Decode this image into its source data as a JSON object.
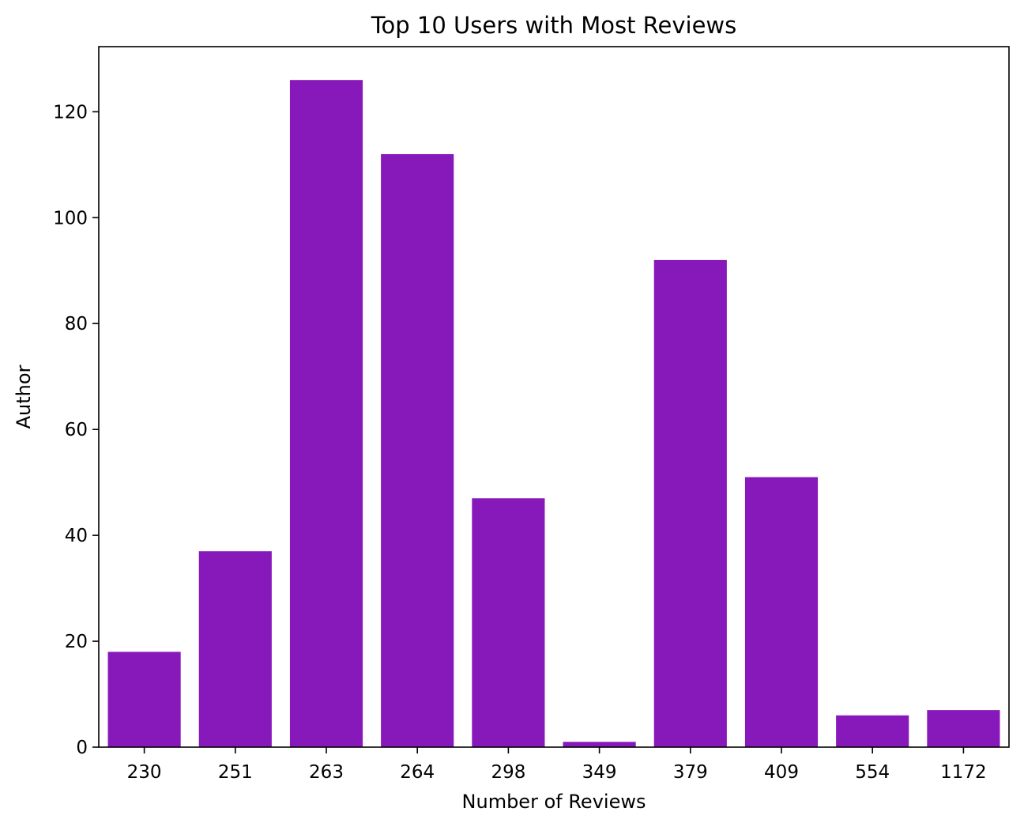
{
  "chart_data": {
    "type": "bar",
    "title": "Top 10 Users with Most Reviews",
    "xlabel": "Number of Reviews",
    "ylabel": "Author",
    "categories": [
      "230",
      "251",
      "263",
      "264",
      "298",
      "349",
      "379",
      "409",
      "554",
      "1172"
    ],
    "values": [
      18,
      37,
      126,
      112,
      47,
      1,
      92,
      51,
      6,
      7
    ],
    "ylim": [
      0,
      132.3
    ],
    "yticks": [
      "0",
      "20",
      "40",
      "60",
      "80",
      "100",
      "120"
    ],
    "grid": false,
    "legend": "none",
    "bar_color": "#8719BA"
  }
}
